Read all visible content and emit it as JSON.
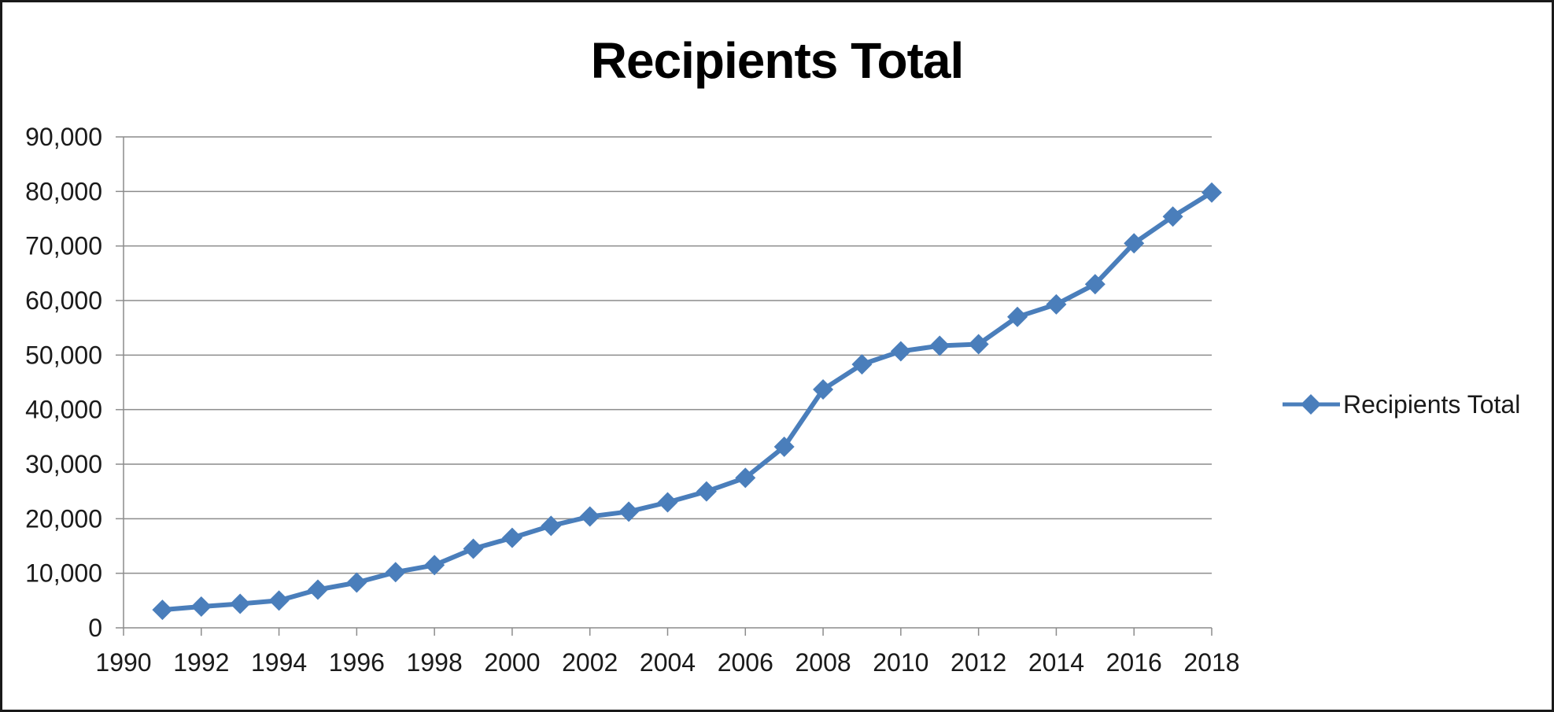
{
  "chart_data": {
    "type": "line",
    "title": "Recipients Total",
    "xlabel": "",
    "ylabel": "",
    "x_ticks": [
      "1990",
      "1992",
      "1994",
      "1996",
      "1998",
      "2000",
      "2002",
      "2004",
      "2006",
      "2008",
      "2010",
      "2012",
      "2014",
      "2016",
      "2018"
    ],
    "y_ticks": [
      "0",
      "10,000",
      "20,000",
      "30,000",
      "40,000",
      "50,000",
      "60,000",
      "70,000",
      "80,000",
      "90,000"
    ],
    "xlim": [
      1990,
      2018
    ],
    "ylim": [
      0,
      90000
    ],
    "grid": "horizontal",
    "legend_position": "right",
    "series": [
      {
        "name": "Recipients Total",
        "color": "#4a7ebb",
        "marker": "diamond",
        "x": [
          1991,
          1992,
          1993,
          1994,
          1995,
          1996,
          1997,
          1998,
          1999,
          2000,
          2001,
          2002,
          2003,
          2004,
          2005,
          2006,
          2007,
          2008,
          2009,
          2010,
          2011,
          2012,
          2013,
          2014,
          2015,
          2016,
          2017,
          2018
        ],
        "values": [
          3300,
          3900,
          4400,
          5000,
          7000,
          8300,
          10200,
          11500,
          14500,
          16500,
          18700,
          20400,
          21300,
          23000,
          25000,
          27500,
          33200,
          43700,
          48300,
          50700,
          51700,
          52000,
          57000,
          59300,
          63000,
          70500,
          75400,
          79800
        ]
      }
    ]
  }
}
